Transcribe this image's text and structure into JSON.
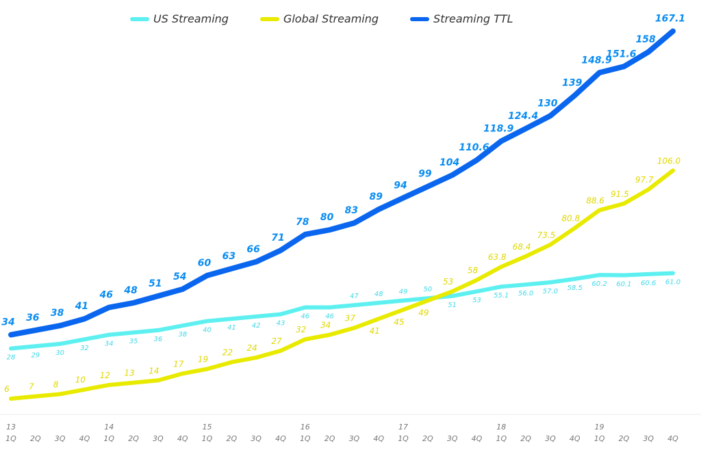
{
  "chart_data": {
    "type": "line",
    "title": "",
    "xlabel": "",
    "ylabel": "",
    "ylim": [
      0,
      170
    ],
    "grid": false,
    "legend_position": "top",
    "x_year_labels": [
      "13",
      "14",
      "15",
      "16",
      "17",
      "18",
      "19"
    ],
    "x_quarter_labels": [
      "1Q",
      "2Q",
      "3Q",
      "4Q",
      "1Q",
      "2Q",
      "3Q",
      "4Q",
      "1Q",
      "2Q",
      "3Q",
      "4Q",
      "1Q",
      "2Q",
      "3Q",
      "4Q",
      "1Q",
      "2Q",
      "3Q",
      "4Q",
      "1Q",
      "2Q",
      "3Q",
      "4Q",
      "1Q",
      "2Q",
      "3Q",
      "4Q"
    ],
    "series": [
      {
        "name": "US Streaming",
        "color": "#5ef0f0",
        "label_color": "#3fd8e8",
        "values": [
          28,
          29,
          30,
          32,
          34,
          35,
          36,
          38,
          40,
          41,
          42,
          43,
          46,
          46,
          47,
          48,
          49,
          50,
          51,
          53,
          55.1,
          56.0,
          57.0,
          58.5,
          60.2,
          60.1,
          60.6,
          61.0
        ],
        "labels": [
          "28",
          "29",
          "30",
          "32",
          "34",
          "35",
          "36",
          "38",
          "40",
          "41",
          "42",
          "43",
          "46",
          "46",
          "47",
          "48",
          "49",
          "50",
          "51",
          "53",
          "55.1",
          "56.0",
          "57.0",
          "58.5",
          "60.2",
          "60.1",
          "60.6",
          "61.0"
        ]
      },
      {
        "name": "Global Streaming",
        "color": "#e8ea00",
        "label_color": "#e0d800",
        "values": [
          6,
          7,
          8,
          10,
          12,
          13,
          14,
          17,
          19,
          22,
          24,
          27,
          32,
          34,
          37,
          41,
          45,
          49,
          53,
          58,
          63.8,
          68.4,
          73.5,
          80.8,
          88.6,
          91.5,
          97.7,
          106.0
        ],
        "labels": [
          "6",
          "7",
          "8",
          "10",
          "12",
          "13",
          "14",
          "17",
          "19",
          "22",
          "24",
          "27",
          "32",
          "34",
          "37",
          "41",
          "45",
          "49",
          "53",
          "58",
          "63.8",
          "68.4",
          "73.5",
          "80.8",
          "88.6",
          "91.5",
          "97.7",
          "106.0"
        ]
      },
      {
        "name": "Streaming TTL",
        "color": "#0a66ee",
        "label_color": "#0a8cf0",
        "values": [
          34,
          36,
          38,
          41,
          46,
          48,
          51,
          54,
          60,
          63,
          66,
          71,
          78,
          80,
          83,
          89,
          94,
          99,
          104,
          110.6,
          118.9,
          124.4,
          130,
          139,
          148.9,
          151.6,
          158,
          167.1
        ],
        "labels": [
          "34",
          "36",
          "38",
          "41",
          "46",
          "48",
          "51",
          "54",
          "60",
          "63",
          "66",
          "71",
          "78",
          "80",
          "83",
          "89",
          "94",
          "99",
          "104",
          "110.6",
          "118.9",
          "124.4",
          "130",
          "139",
          "148.9",
          "151.6",
          "158",
          "167.1"
        ]
      }
    ]
  }
}
